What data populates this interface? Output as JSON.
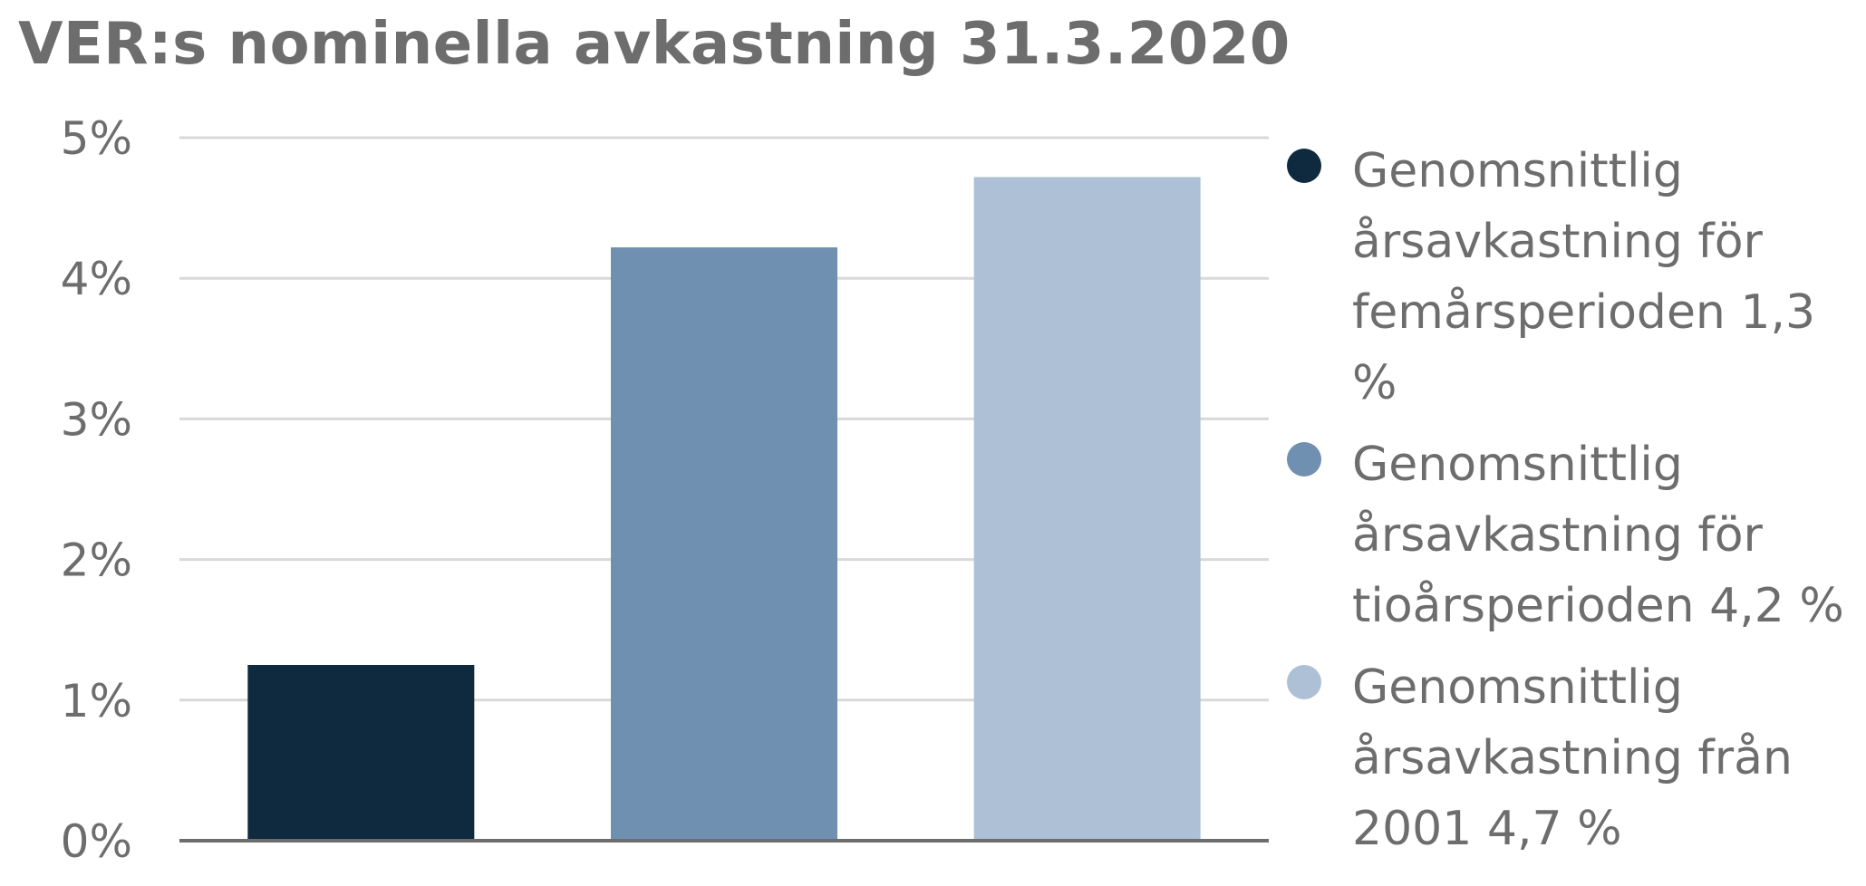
{
  "chart_data": {
    "type": "bar",
    "title": "VER:s nominella avkastning 31.3.2020",
    "xlabel": "",
    "ylabel": "",
    "ylim": [
      0,
      5
    ],
    "yticks": [
      "0%",
      "1%",
      "2%",
      "3%",
      "4%",
      "5%"
    ],
    "grid": true,
    "legend_position": "right",
    "categories": [
      "Genomsnittlig årsavkastning för femårsperioden 1,3 %",
      "Genomsnittlig årsavkastning för tioårsperioden 4,2 %",
      "Genomsnittlig årsavkastning från 2001 4,7 %"
    ],
    "values": [
      1.25,
      4.22,
      4.72
    ],
    "colors": [
      "#0f2a3f",
      "#7090b2",
      "#adc0d5"
    ]
  }
}
